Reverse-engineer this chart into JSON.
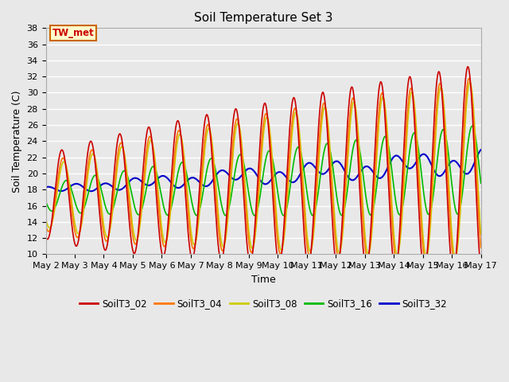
{
  "title": "Soil Temperature Set 3",
  "xlabel": "Time",
  "ylabel": "Soil Temperature (C)",
  "ylim": [
    10,
    38
  ],
  "series": {
    "SoilT3_02": {
      "color": "#cc0000",
      "lw": 1.2
    },
    "SoilT3_04": {
      "color": "#ff7700",
      "lw": 1.2
    },
    "SoilT3_08": {
      "color": "#cccc00",
      "lw": 1.2
    },
    "SoilT3_16": {
      "color": "#00bb00",
      "lw": 1.2
    },
    "SoilT3_32": {
      "color": "#0000cc",
      "lw": 1.5
    }
  },
  "xtick_labels": [
    "May 2",
    "May 3",
    "May 4",
    "May 5",
    "May 6",
    "May 7",
    "May 8",
    "May 9",
    "May 10",
    "May 11",
    "May 12",
    "May 13",
    "May 14",
    "May 15",
    "May 16",
    "May 17"
  ],
  "annotation_text": "TW_met",
  "annotation_color": "#cc0000",
  "annotation_bg": "#ffffcc",
  "annotation_border": "#cc6600",
  "plot_bg": "#e8e8e8",
  "grid_color": "#ffffff",
  "title_fontsize": 11,
  "axis_fontsize": 9,
  "tick_fontsize": 8
}
